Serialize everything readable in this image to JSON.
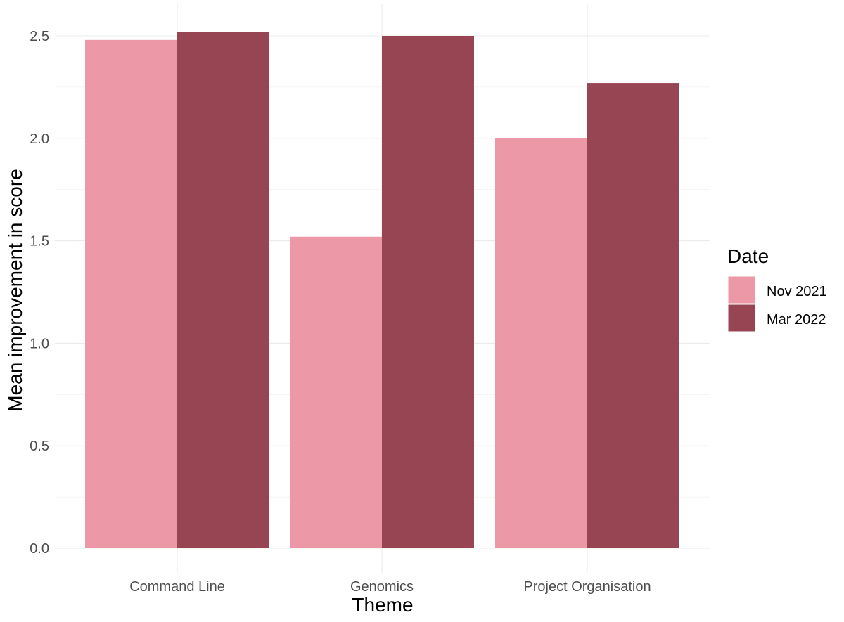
{
  "chart_data": {
    "type": "bar",
    "categories": [
      "Command Line",
      "Genomics",
      "Project Organisation"
    ],
    "series": [
      {
        "name": "Nov 2021",
        "values": [
          2.48,
          1.52,
          2.0
        ],
        "color": "#ec98a6"
      },
      {
        "name": "Mar 2022",
        "values": [
          2.52,
          2.5,
          2.27
        ],
        "color": "#974453"
      }
    ],
    "xlabel": "Theme",
    "ylabel": "Mean improvement in score",
    "ylim": [
      0,
      2.5
    ],
    "yticks": [
      "0.0",
      "0.5",
      "1.0",
      "1.5",
      "2.0",
      "2.5"
    ],
    "grid": true,
    "legend": {
      "title": "Date",
      "placement": "right"
    }
  }
}
